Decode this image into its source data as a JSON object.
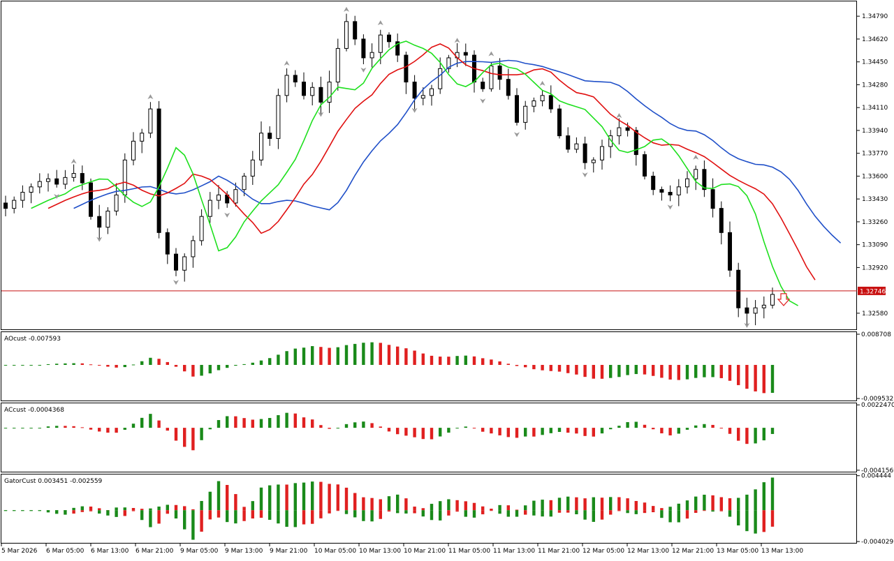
{
  "chart_data": {
    "type": "candlestick",
    "symbol_panel": {
      "price_ticks": [
        "1.34790",
        "1.34620",
        "1.34450",
        "1.34280",
        "1.34110",
        "1.33940",
        "1.33770",
        "1.33600",
        "1.33430",
        "1.33260",
        "1.33090",
        "1.32920",
        "1.32580"
      ],
      "price_tick_values": [
        1.3479,
        1.3462,
        1.3445,
        1.3428,
        1.3411,
        1.3394,
        1.3377,
        1.336,
        1.3343,
        1.3326,
        1.3309,
        1.3292,
        1.3258
      ],
      "current_price_label": "1.32746",
      "current_price": 1.32746,
      "ylim": [
        1.3246,
        1.349
      ],
      "line_colors": {
        "jaw": "#1f4fc8",
        "teeth": "#e01010",
        "lips": "#1ee01e",
        "price_line": "#c81010"
      }
    },
    "ao_panel": {
      "title": "AOcust -0.007593",
      "ticks": [
        "0.008708",
        "-0.009532"
      ],
      "tick_values": [
        0.008708,
        -0.009532
      ],
      "ylim": [
        -0.0101,
        0.0093
      ]
    },
    "ac_panel": {
      "title": "ACcust -0.0004368",
      "ticks": [
        "0.0022470",
        "-0.0041569"
      ],
      "tick_values": [
        0.002247,
        -0.0041569
      ],
      "ylim": [
        -0.0043,
        0.0024
      ]
    },
    "gator_panel": {
      "title": "GatorCust 0.003451 -0.002559",
      "ticks": [
        "0.004444",
        "-0.004029"
      ],
      "tick_values": [
        0.004444,
        -0.004029
      ],
      "ylim": [
        -0.0042,
        0.0046
      ]
    },
    "time_labels": [
      "5 Mar 2026",
      "6 Mar 05:00",
      "6 Mar 13:00",
      "6 Mar 21:00",
      "9 Mar 05:00",
      "9 Mar 13:00",
      "9 Mar 21:00",
      "10 Mar 05:00",
      "10 Mar 13:00",
      "10 Mar 21:00",
      "11 Mar 05:00",
      "11 Mar 13:00",
      "11 Mar 21:00",
      "12 Mar 05:00",
      "12 Mar 13:00",
      "12 Mar 21:00",
      "13 Mar 05:00",
      "13 Mar 13:00"
    ],
    "colors": {
      "up": "#1a8a1a",
      "down": "#e02020",
      "candle": "#000000"
    },
    "price_path": [
      1.3336,
      1.3342,
      1.3348,
      1.3352,
      1.3356,
      1.3358,
      1.3354,
      1.3359,
      1.3362,
      1.3355,
      1.333,
      1.3322,
      1.3334,
      1.3346,
      1.3372,
      1.3386,
      1.3392,
      1.341,
      1.3318,
      1.3302,
      1.329,
      1.33,
      1.3312,
      1.333,
      1.3342,
      1.3346,
      1.334,
      1.335,
      1.336,
      1.3372,
      1.3392,
      1.3388,
      1.342,
      1.3435,
      1.343,
      1.342,
      1.3426,
      1.3415,
      1.343,
      1.3455,
      1.3475,
      1.3462,
      1.3448,
      1.3452,
      1.3465,
      1.346,
      1.345,
      1.343,
      1.3418,
      1.342,
      1.3425,
      1.344,
      1.3448,
      1.3452,
      1.345,
      1.343,
      1.3425,
      1.3442,
      1.3432,
      1.342,
      1.34,
      1.3412,
      1.3416,
      1.342,
      1.341,
      1.339,
      1.338,
      1.3384,
      1.337,
      1.3372,
      1.3382,
      1.339,
      1.3396,
      1.3394,
      1.3376,
      1.336,
      1.335,
      1.3348,
      1.3346,
      1.3352,
      1.3358,
      1.3365,
      1.335,
      1.3336,
      1.3318,
      1.329,
      1.3262,
      1.3258,
      1.3262,
      1.3264,
      1.3272
    ]
  }
}
